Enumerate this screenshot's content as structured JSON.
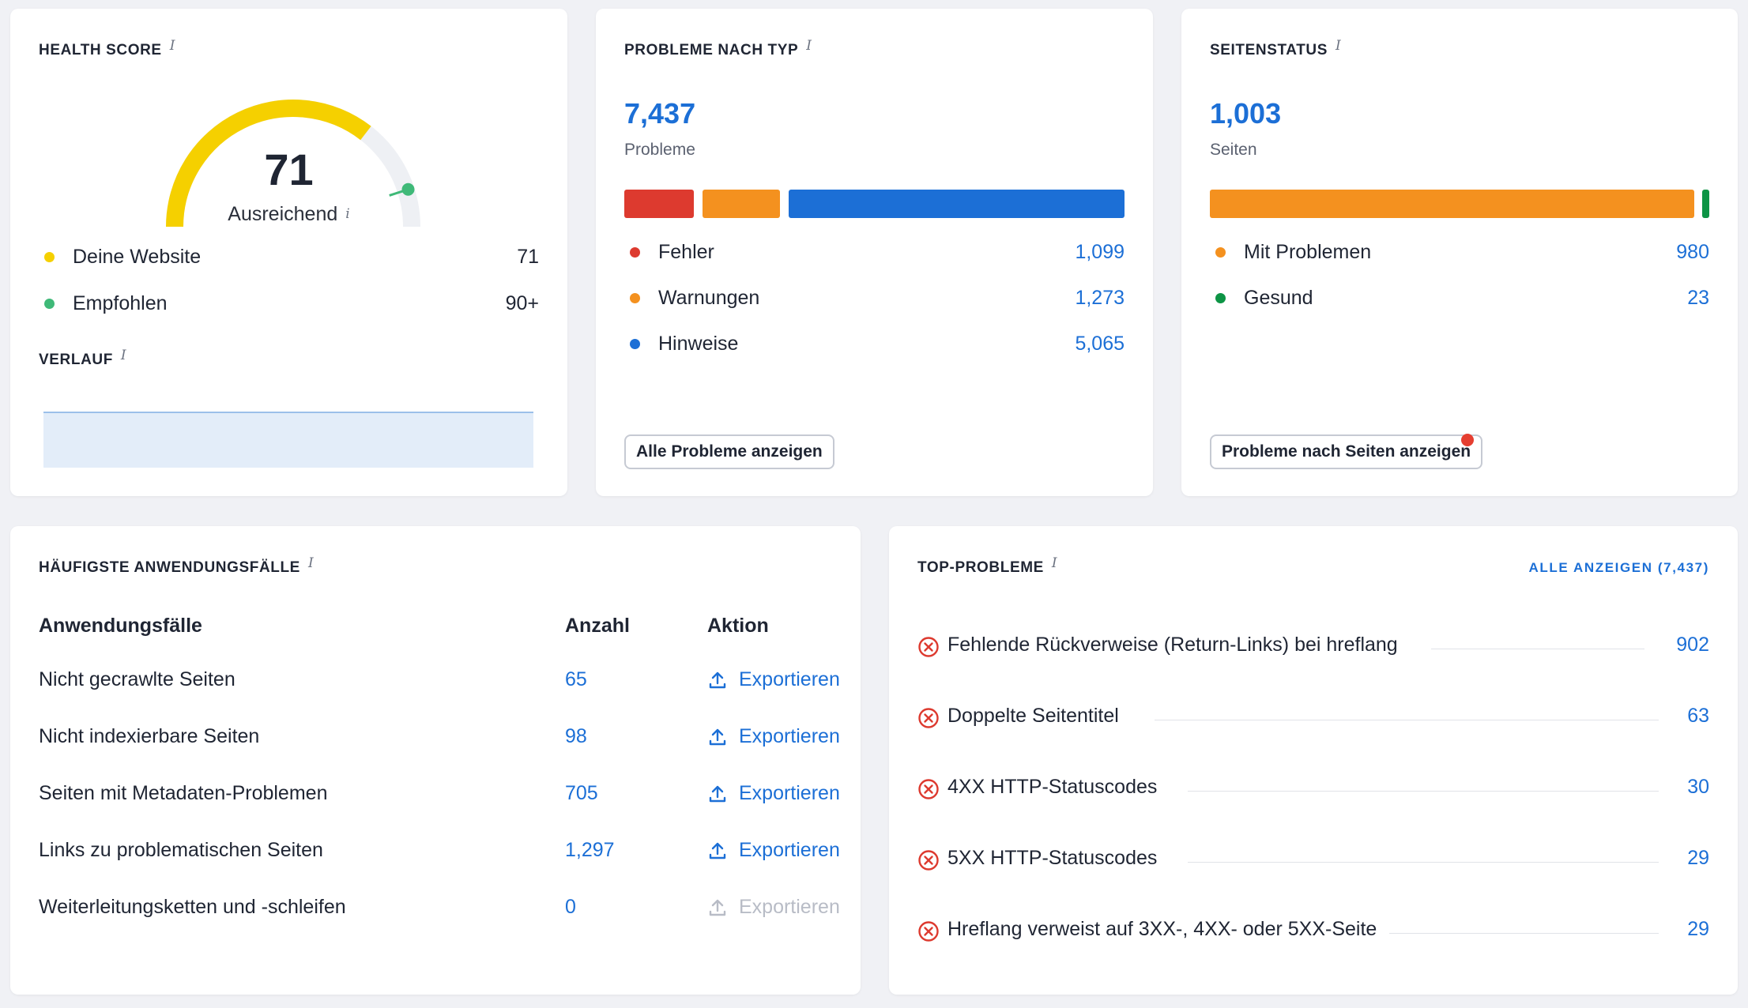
{
  "health": {
    "title": "HEALTH SCORE",
    "info": "i",
    "score": "71",
    "score_fraction": 0.71,
    "score_label": "Ausreichend",
    "rows": [
      {
        "label": "Deine Website",
        "value": "71",
        "color": "#f5d000"
      },
      {
        "label": "Empfohlen",
        "value": "90+",
        "color": "#3fb978"
      }
    ],
    "history_title": "VERLAUF"
  },
  "problems": {
    "title": "PROBLEME NACH TYP",
    "total": "7,437",
    "total_label": "Probleme",
    "rows": [
      {
        "label": "Fehler",
        "value": "1,099",
        "color": "#dd3a2f"
      },
      {
        "label": "Warnungen",
        "value": "1,273",
        "color": "#f4911f"
      },
      {
        "label": "Hinweise",
        "value": "5,065",
        "color": "#1c6fd6"
      }
    ],
    "button": "Alle Probleme anzeigen"
  },
  "pages": {
    "title": "SEITENSTATUS",
    "total": "1,003",
    "total_label": "Seiten",
    "rows": [
      {
        "label": "Mit Problemen",
        "value": "980",
        "color": "#f4911f"
      },
      {
        "label": "Gesund",
        "value": "23",
        "color": "#0d9445"
      }
    ],
    "button": "Probleme nach Seiten anzeigen"
  },
  "use_cases": {
    "title": "HÄUFIGSTE ANWENDUNGSFÄLLE",
    "col_name": "Anwendungsfälle",
    "col_count": "Anzahl",
    "col_action": "Aktion",
    "rows": [
      {
        "name": "Nicht gecrawlte Seiten",
        "count": "65",
        "action": "Exportieren",
        "enabled": true
      },
      {
        "name": "Nicht indexierbare Seiten",
        "count": "98",
        "action": "Exportieren",
        "enabled": true
      },
      {
        "name": "Seiten mit Metadaten-Problemen",
        "count": "705",
        "action": "Exportieren",
        "enabled": true
      },
      {
        "name": "Links zu problematischen Seiten",
        "count": "1,297",
        "action": "Exportieren",
        "enabled": true
      },
      {
        "name": "Weiterleitungsketten und -schleifen",
        "count": "0",
        "action": "Exportieren",
        "enabled": false
      }
    ]
  },
  "top_problems": {
    "title": "TOP-PROBLEME",
    "view_all": "ALLE ANZEIGEN (7,437)",
    "rows": [
      {
        "label": "Fehlende Rückverweise (Return-Links) bei hreflang",
        "value": "902"
      },
      {
        "label": "Doppelte Seitentitel",
        "value": "63"
      },
      {
        "label": "4XX HTTP-Statuscodes",
        "value": "30"
      },
      {
        "label": "5XX HTTP-Statuscodes",
        "value": "29"
      },
      {
        "label": "Hreflang verweist auf 3XX-, 4XX- oder 5XX-Seite",
        "value": "29"
      }
    ]
  },
  "colors": {
    "accent": "#1c6fd6",
    "error": "#dd3a2f",
    "warning": "#f4911f",
    "notice": "#1c6fd6",
    "gauge": "#f5d000",
    "healthy": "#0d9445",
    "recommended": "#3fb978"
  }
}
